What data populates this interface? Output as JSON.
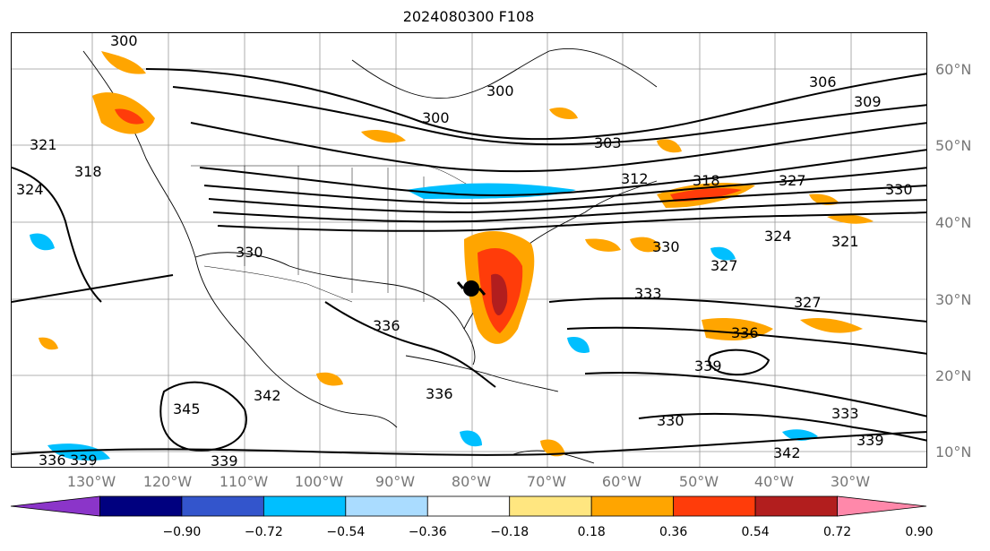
{
  "title": "2024080300 F108",
  "latitudes": [
    "60°N",
    "50°N",
    "40°N",
    "30°N",
    "20°N",
    "10°N"
  ],
  "longitudes": [
    "130°W",
    "120°W",
    "110°W",
    "100°W",
    "90°W",
    "80°W",
    "70°W",
    "60°W",
    "50°W",
    "40°W",
    "30°W"
  ],
  "contour_labels": [
    "300",
    "300",
    "300",
    "303",
    "306",
    "309",
    "312",
    "318",
    "318",
    "321",
    "321",
    "324",
    "324",
    "327",
    "327",
    "327",
    "330",
    "330",
    "330",
    "330",
    "333",
    "333",
    "336",
    "336",
    "336",
    "336",
    "339",
    "339",
    "339",
    "339",
    "342",
    "342",
    "345"
  ],
  "colorbar": {
    "ticks": [
      "−0.90",
      "−0.72",
      "−0.54",
      "−0.36",
      "−0.18",
      "0.18",
      "0.36",
      "0.54",
      "0.72",
      "0.90"
    ],
    "colors": [
      "#8b35c9",
      "#00007f",
      "#3355cc",
      "#00bfff",
      "#aadcff",
      "#ffffff",
      "#ffe680",
      "#ffa500",
      "#ff3c0a",
      "#b21e1e",
      "#ff88aa"
    ]
  }
}
